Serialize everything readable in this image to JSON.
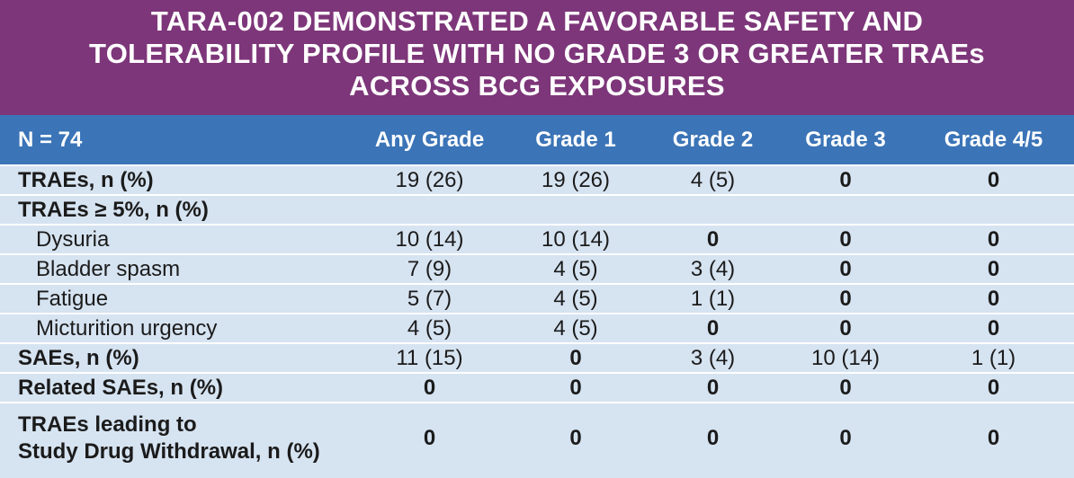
{
  "header": {
    "title": "TARA-002 DEMONSTRATED A FAVORABLE SAFETY AND TOLERABILITY PROFILE WITH NO GRADE 3 OR GREATER TRAEs ACROSS BCG EXPOSURES"
  },
  "table": {
    "columns": [
      "N = 74",
      "Any Grade",
      "Grade 1",
      "Grade 2",
      "Grade 3",
      "Grade 4/5"
    ],
    "rows": [
      {
        "label": "TRAEs, n (%)",
        "cells": [
          "19 (26)",
          "19 (26)",
          "4 (5)",
          "0",
          "0"
        ]
      },
      {
        "label": "TRAEs ≥ 5%, n (%)"
      },
      {
        "label": "Dysuria",
        "cells": [
          "10 (14)",
          "10 (14)",
          "0",
          "0",
          "0"
        ]
      },
      {
        "label": "Bladder spasm",
        "cells": [
          "7 (9)",
          "4 (5)",
          "3 (4)",
          "0",
          "0"
        ]
      },
      {
        "label": "Fatigue",
        "cells": [
          "5 (7)",
          "4 (5)",
          "1 (1)",
          "0",
          "0"
        ]
      },
      {
        "label": "Micturition urgency",
        "cells": [
          "4 (5)",
          "4 (5)",
          "0",
          "0",
          "0"
        ]
      },
      {
        "label": "SAEs, n (%)",
        "cells": [
          "11 (15)",
          "0",
          "3 (4)",
          "10 (14)",
          "1 (1)"
        ]
      },
      {
        "label": "Related SAEs, n (%)",
        "cells": [
          "0",
          "0",
          "0",
          "0",
          "0"
        ]
      },
      {
        "label": [
          "TRAEs leading to",
          "Study Drug Withdrawal, n (%)"
        ],
        "cells": [
          "0",
          "0",
          "0",
          "0",
          "0"
        ]
      }
    ]
  }
}
